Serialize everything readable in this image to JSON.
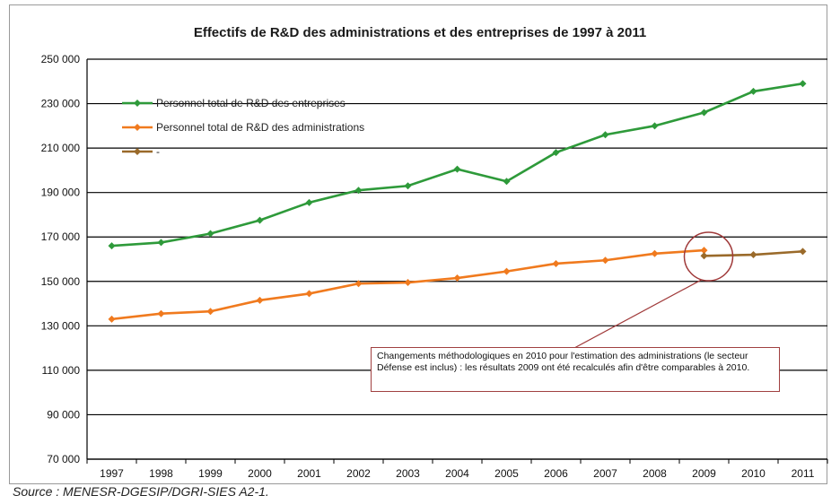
{
  "chart_data": {
    "type": "line",
    "title": "Effectifs de R&D des administrations et des entreprises de 1997 à 2011",
    "xlabel": "",
    "ylabel": "",
    "x": [
      "1997",
      "1998",
      "1999",
      "2000",
      "2001",
      "2002",
      "2003",
      "2004",
      "2005",
      "2006",
      "2007",
      "2008",
      "2009",
      "2010",
      "2011"
    ],
    "ylim": [
      70000,
      250000
    ],
    "yticks": [
      70000,
      90000,
      110000,
      130000,
      150000,
      170000,
      190000,
      210000,
      230000,
      250000
    ],
    "ytick_labels": [
      "70 000",
      "90 000",
      "110 000",
      "130 000",
      "150 000",
      "170 000",
      "190 000",
      "210 000",
      "230 000",
      "250 000"
    ],
    "grid": "horizontal",
    "legend_position": "top-left",
    "series": [
      {
        "name": "Personnel total  de R&D des entreprises",
        "color": "#2e9a3a",
        "marker": "diamond",
        "x": [
          "1997",
          "1998",
          "1999",
          "2000",
          "2001",
          "2002",
          "2003",
          "2004",
          "2005",
          "2006",
          "2007",
          "2008",
          "2009",
          "2010",
          "2011"
        ],
        "values": [
          166000,
          167500,
          171500,
          177500,
          185500,
          191000,
          193000,
          200500,
          195000,
          208000,
          216000,
          220000,
          226000,
          235500,
          239000
        ]
      },
      {
        "name": "Personnel total de R&D des administrations",
        "color": "#f07a1e",
        "marker": "diamond",
        "x": [
          "1997",
          "1998",
          "1999",
          "2000",
          "2001",
          "2002",
          "2003",
          "2004",
          "2005",
          "2006",
          "2007",
          "2008",
          "2009"
        ],
        "values": [
          133000,
          135500,
          136500,
          141500,
          144500,
          149000,
          149500,
          151500,
          154500,
          158000,
          159500,
          162500,
          164000
        ]
      },
      {
        "name": "-",
        "color": "#9a6a2a",
        "marker": "diamond",
        "x": [
          "2009",
          "2010",
          "2011"
        ],
        "values": [
          161500,
          162000,
          163500
        ]
      }
    ],
    "annotations": [
      "Changements méthodologiques en 2010 pour l'estimation des administrations (le secteur Défense est inclus)  : les résultats 2009 ont été recalculés afin d'être comparables à 2010."
    ]
  },
  "source": "Source : MENESR-DGESIP/DGRI-SIES A2-1."
}
